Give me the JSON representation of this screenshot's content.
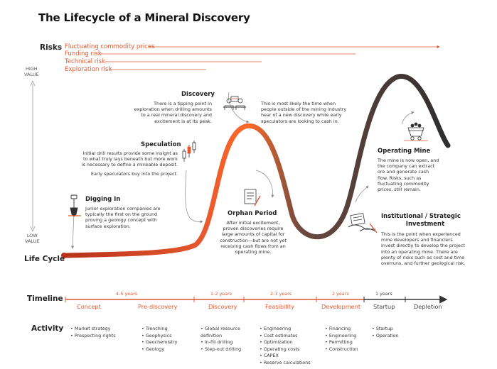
{
  "title": "The Lifecycle of a Mineral Discovery",
  "risks": {
    "label": "Risks",
    "items": [
      {
        "text": "Fluctuating commodity prices"
      },
      {
        "text": "Funding risk"
      },
      {
        "text": "Technical risk"
      },
      {
        "text": "Exploration risk"
      }
    ]
  },
  "axis": {
    "high": [
      "HIGH",
      "VALUE"
    ],
    "low": [
      "LOW",
      "VALUE"
    ],
    "lifecycle": "Life Cycle"
  },
  "stages": {
    "digging_in": {
      "heading": "Digging In",
      "body": [
        "Junior exploration companies are",
        "typically the first on the ground",
        "proving a geology concept with",
        "surface exploration."
      ]
    },
    "speculation": {
      "heading": "Speculation",
      "body": [
        "Initial drill results provide some insight as",
        "to what truly lays beneath but more work",
        "is necessary to define a mineable deposit."
      ],
      "body2": "Early speculators buy into the project."
    },
    "discovery": {
      "heading": "Discovery",
      "body": [
        "There is a tipping point in",
        "exploration when drilling amounts",
        "to a real mineral discovery and",
        "excitement is at its peak."
      ]
    },
    "discovery_note": {
      "body": [
        "This is most likely the time when",
        "people outside of the mining industry",
        "hear of a new discovery while early",
        "speculators are looking to cash in."
      ]
    },
    "orphan": {
      "heading": "Orphan Period",
      "body": [
        "After initial excitement,",
        "proven discoveries require",
        "large amounts of capital for",
        "construction—but are not yet",
        "receiving cash flows from an",
        "operating mine."
      ]
    },
    "operating": {
      "heading": "Operating Mine",
      "body": [
        "The mine is now open, and",
        "the company can extract",
        "ore and generate cash",
        "flow. Risks, such as",
        "fluctuating commodity",
        "prices, still remain."
      ]
    },
    "institutional": {
      "heading": [
        "Institutional / Strategic",
        "Investment"
      ],
      "body": [
        "This is the point when experienced",
        "mine developers and financiers",
        "invest directly to develop the project",
        "into an operating mine. There are",
        "plenty of risks such as cost and time",
        "overruns, and further geological risk."
      ]
    }
  },
  "timeline": {
    "label": "Timeline",
    "durations": [
      "4-5 years",
      "1-2 years",
      "2-3 years",
      "2 years",
      "1 years"
    ],
    "phases": [
      "Concept",
      "Pre-discovery",
      "Discovery",
      "Feasibility",
      "Development",
      "Startup",
      "Depletion"
    ]
  },
  "activity": {
    "label": "Activity",
    "columns": [
      [
        "Market strategy",
        "Prospecting rights"
      ],
      [
        "Trenching",
        "Geophysics",
        "Geochemistry",
        "Geology"
      ],
      [
        "Global resource definition",
        "In-fill drilling",
        "Step-out drilling"
      ],
      [
        "Engineering",
        "Cost estimates",
        "Optimization",
        "Operating costs",
        "CAPEX",
        "Reserve calculations"
      ],
      [
        "Financing",
        "Engineering",
        "Permitting",
        "Construction"
      ],
      [
        "Startup",
        "Operation"
      ]
    ]
  },
  "colors": {
    "accent": "#e4572e",
    "dark": "#3a3a3a"
  },
  "icons": [
    "shovel-icon",
    "candlestick-icon",
    "meeting-icon",
    "document-pen-icon",
    "mine-cart-icon",
    "handshake-contract-icon"
  ]
}
